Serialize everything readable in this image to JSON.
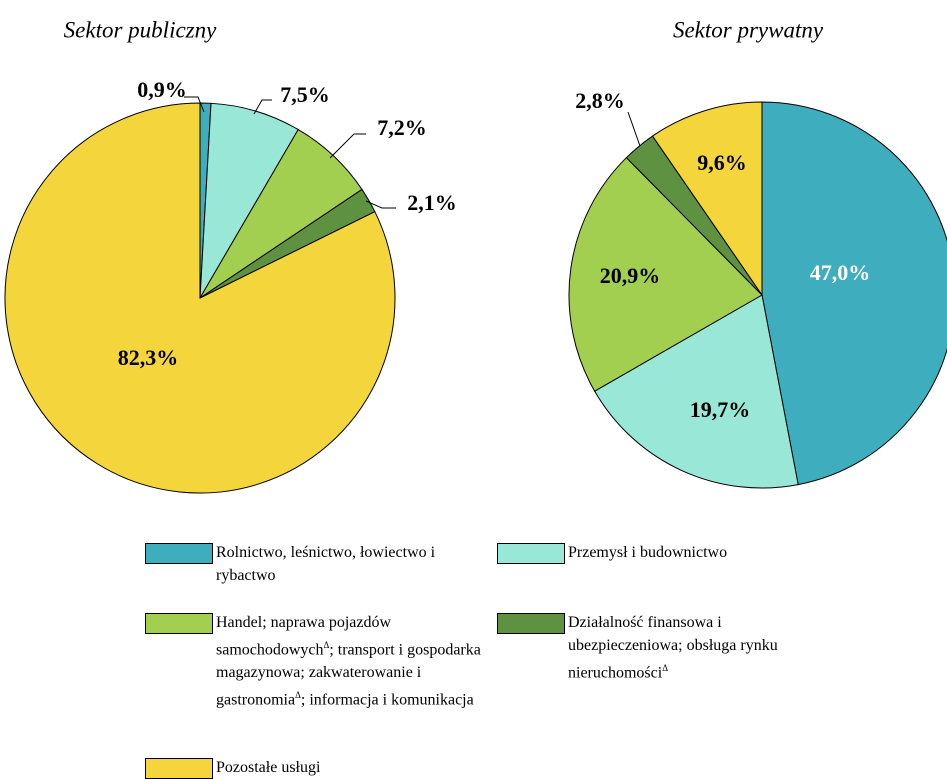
{
  "chart_data": [
    {
      "type": "pie",
      "title": "Sektor publiczny",
      "categories": [
        "Rolnictwo, leśnictwo, łowiectwo i rybactwo",
        "Przemysł i budownictwo",
        "Handel; naprawa pojazdów samochodowychΔ; transport i gospodarka magazynowa; zakwaterowanie i gastronomiaΔ; informacja i komunikacja",
        "Działalność finansowa i ubezpieczeniowa; obsługa rynku nieruchomościΔ",
        "Pozostałe usługi"
      ],
      "values": [
        0.9,
        7.5,
        7.2,
        2.1,
        82.3
      ],
      "value_labels": [
        "0,9%",
        "7,5%",
        "7,2%",
        "2,1%",
        "82,3%"
      ],
      "colors": [
        "#3eadbd",
        "#99e7d7",
        "#a3cf50",
        "#5e9140",
        "#f5d53c"
      ]
    },
    {
      "type": "pie",
      "title": "Sektor prywatny",
      "categories": [
        "Rolnictwo, leśnictwo, łowiectwo i rybactwo",
        "Przemysł i budownictwo",
        "Handel; naprawa pojazdów samochodowychΔ; transport i gospodarka magazynowa; zakwaterowanie i gastronomiaΔ; informacja i komunikacja",
        "Działalność finansowa i ubezpieczeniowa; obsługa rynku nieruchomościΔ",
        "Pozostałe usługi"
      ],
      "values": [
        47.0,
        19.7,
        20.9,
        2.8,
        9.6
      ],
      "value_labels": [
        "47,0%",
        "19,7%",
        "20,9%",
        "2,8%",
        "9,6%"
      ],
      "colors": [
        "#3eadbd",
        "#99e7d7",
        "#a3cf50",
        "#5e9140",
        "#f5d53c"
      ]
    }
  ]
}
